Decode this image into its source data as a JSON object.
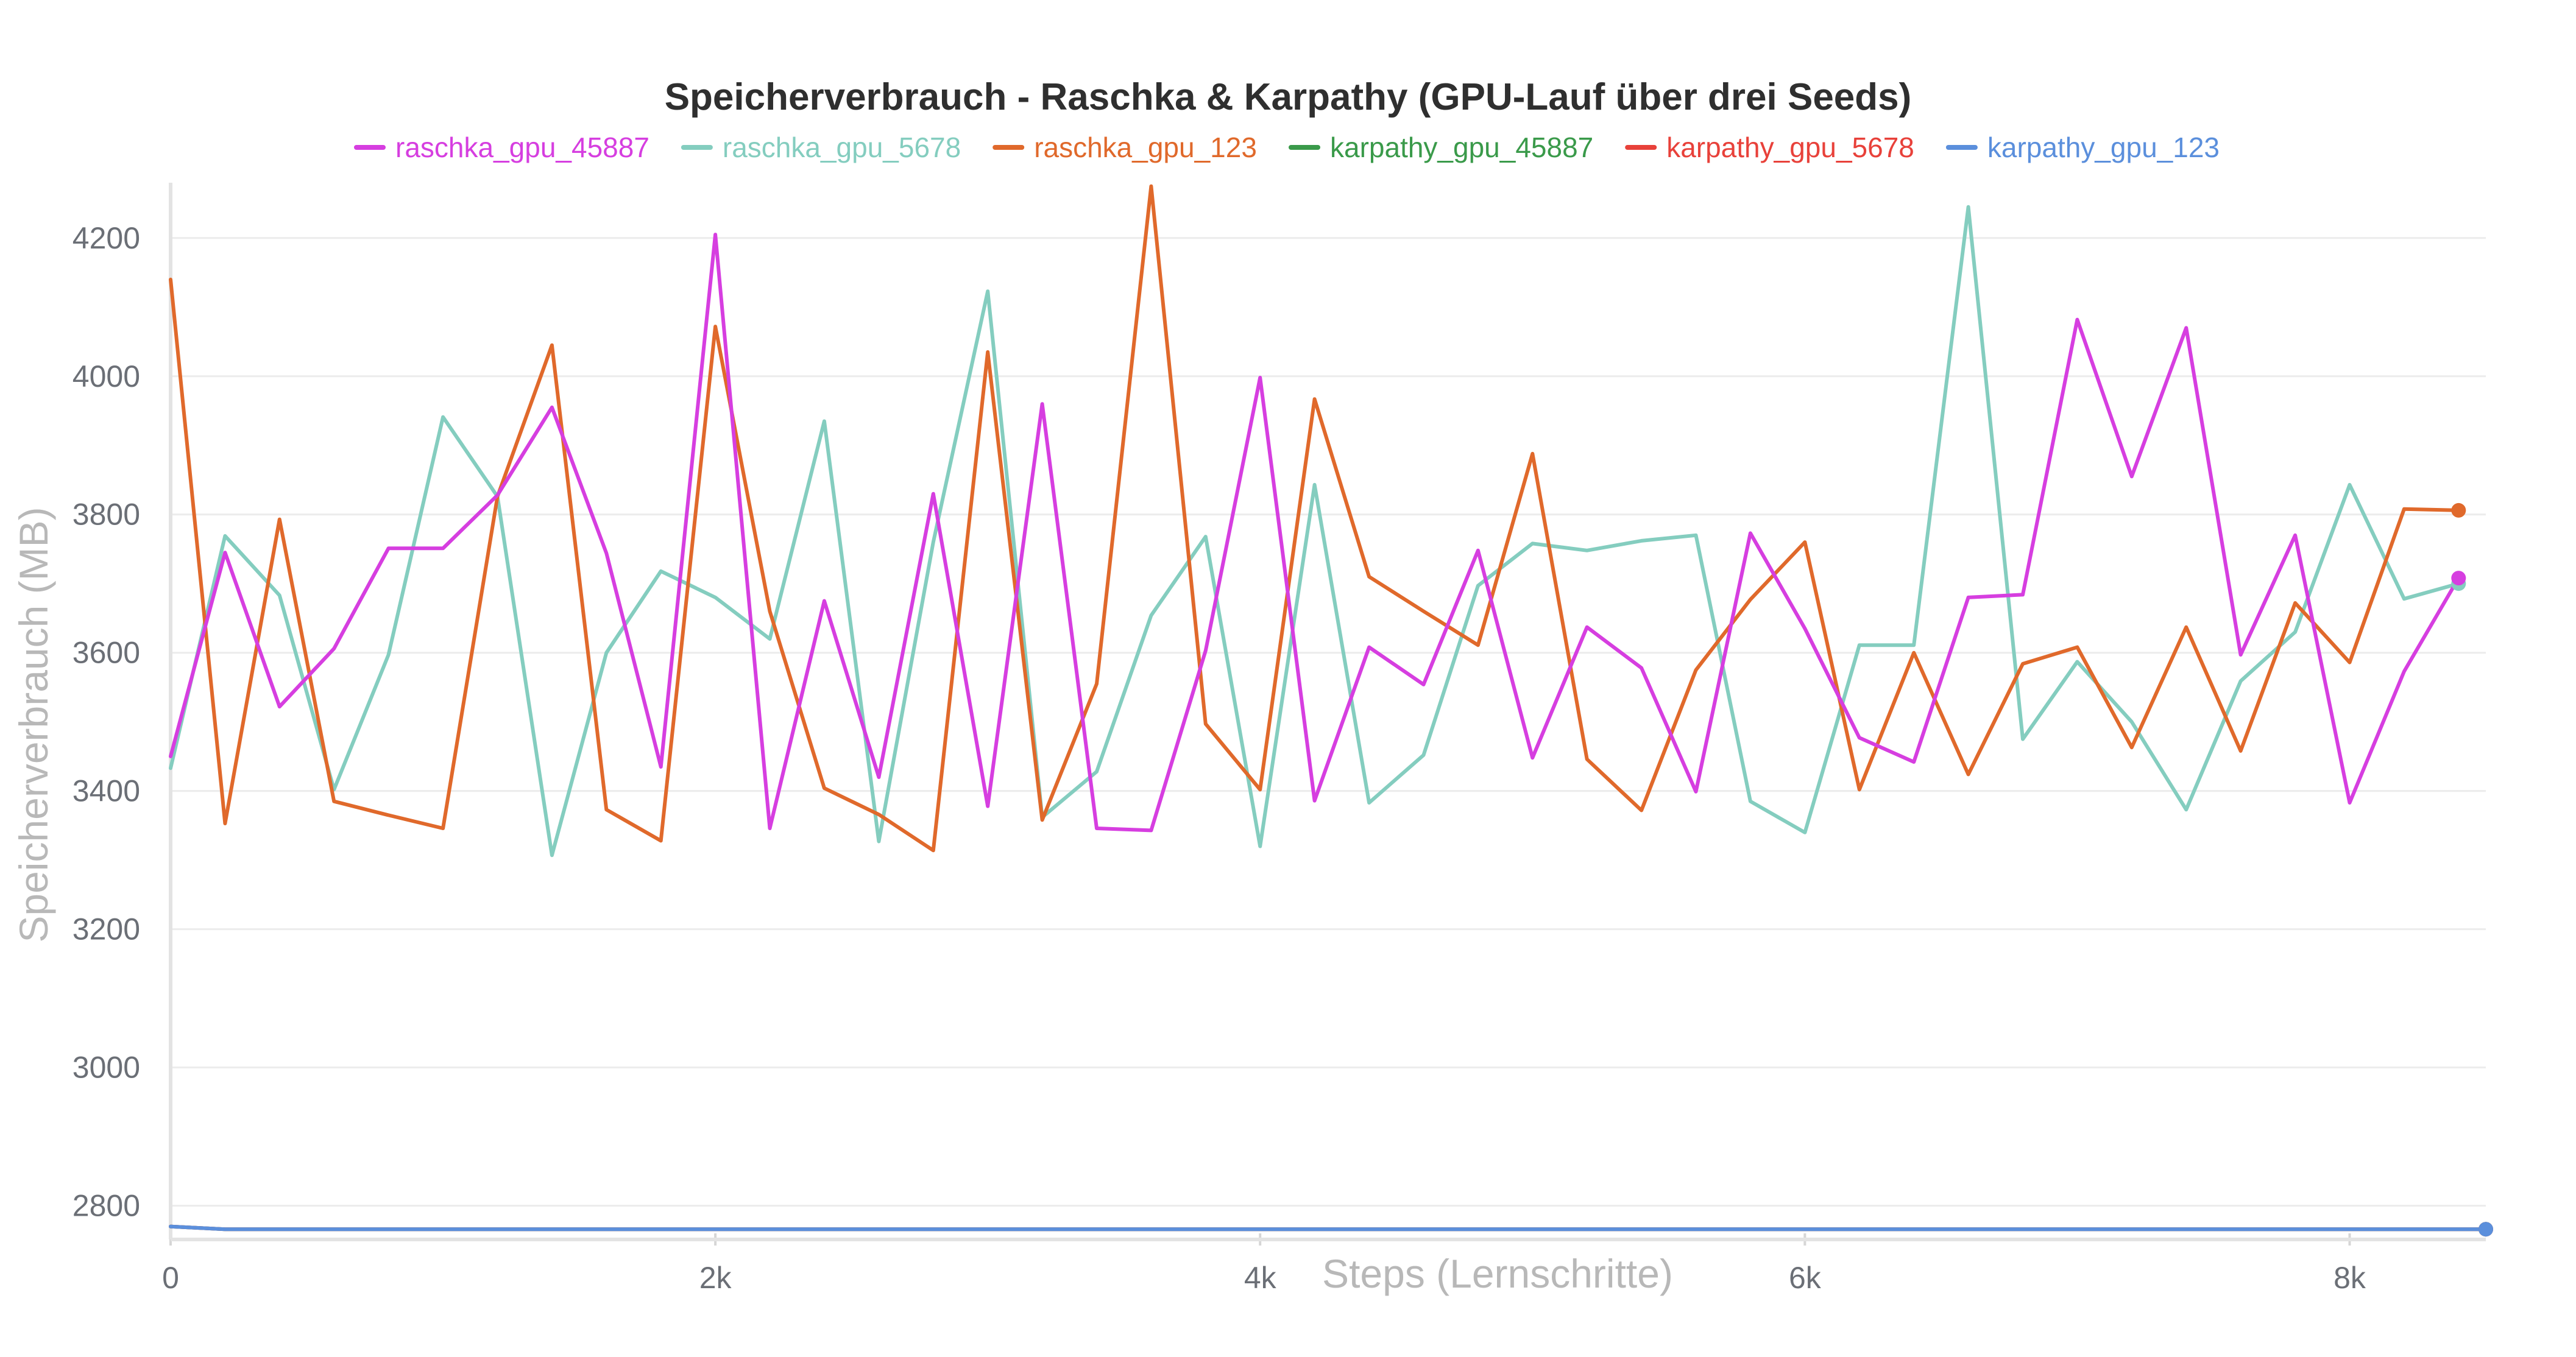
{
  "chart_data": {
    "type": "line",
    "title": "Speicherverbrauch - Raschka & Karpathy (GPU-Lauf über drei Seeds)",
    "xlabel": "Steps (Lernschritte)",
    "ylabel": "Speicherverbrauch (MB)",
    "xlim": [
      0,
      8500
    ],
    "ylim": [
      2760,
      4280
    ],
    "x_ticks": [
      0,
      2000,
      4000,
      6000,
      8000
    ],
    "x_tick_labels": [
      "0",
      "2k",
      "4k",
      "6k",
      "8k"
    ],
    "y_ticks": [
      2800,
      3000,
      3200,
      3400,
      3600,
      3800,
      4000,
      4200
    ],
    "y_tick_labels": [
      "2800",
      "3000",
      "3200",
      "3400",
      "3600",
      "3800",
      "4000",
      "4200"
    ],
    "grid": true,
    "legend_position": "top",
    "series": [
      {
        "name": "raschka_gpu_45887",
        "color": "#d63ee0",
        "x": [
          0,
          200,
          400,
          600,
          800,
          1000,
          1200,
          1400,
          1600,
          1800,
          2000,
          2200,
          2400,
          2600,
          2800,
          3000,
          3200,
          3400,
          3600,
          3800,
          4000,
          4200,
          4400,
          4600,
          4800,
          5000,
          5200,
          5400,
          5600,
          5800,
          6000,
          6200,
          6400,
          6600,
          6800,
          7000,
          7200,
          7400,
          7600,
          7800,
          8000,
          8200,
          8400
        ],
        "values": [
          3450,
          3745,
          3522,
          3606,
          3751,
          3751,
          3828,
          3955,
          3744,
          3435,
          4205,
          3346,
          3675,
          3420,
          3830,
          3378,
          3960,
          3346,
          3343,
          3603,
          3998,
          3386,
          3608,
          3554,
          3748,
          3448,
          3637,
          3578,
          3399,
          3773,
          3635,
          3477,
          3442,
          3680,
          3684,
          4082,
          3855,
          4070,
          3597,
          3770,
          3383,
          3573,
          3708
        ]
      },
      {
        "name": "raschka_gpu_5678",
        "color": "#84cdbf",
        "x": [
          0,
          200,
          400,
          600,
          800,
          1000,
          1200,
          1400,
          1600,
          1800,
          2000,
          2200,
          2400,
          2600,
          2800,
          3000,
          3200,
          3400,
          3600,
          3800,
          4000,
          4200,
          4400,
          4600,
          4800,
          5000,
          5200,
          5400,
          5600,
          5800,
          6000,
          6200,
          6400,
          6600,
          6800,
          7000,
          7200,
          7400,
          7600,
          7800,
          8000,
          8200,
          8400
        ],
        "values": [
          3433,
          3769,
          3683,
          3402,
          3597,
          3941,
          3826,
          3307,
          3600,
          3718,
          3680,
          3620,
          3935,
          3327,
          3760,
          4123,
          3362,
          3428,
          3654,
          3768,
          3320,
          3843,
          3383,
          3452,
          3697,
          3758,
          3748,
          3762,
          3770,
          3385,
          3340,
          3611,
          3611,
          4245,
          3475,
          3587,
          3500,
          3373,
          3559,
          3630,
          3843,
          3678,
          3700
        ]
      },
      {
        "name": "raschka_gpu_123",
        "color": "#e0692b",
        "x": [
          0,
          200,
          400,
          600,
          800,
          1000,
          1200,
          1400,
          1600,
          1800,
          2000,
          2200,
          2400,
          2600,
          2800,
          3000,
          3200,
          3400,
          3600,
          3800,
          4000,
          4200,
          4400,
          4600,
          4800,
          5000,
          5200,
          5400,
          5600,
          5800,
          6000,
          6200,
          6400,
          6600,
          6800,
          7000,
          7200,
          7400,
          7600,
          7800,
          8000,
          8200,
          8400
        ],
        "values": [
          4140,
          3353,
          3793,
          3385,
          3365,
          3346,
          3826,
          4045,
          3373,
          3328,
          4072,
          3660,
          3404,
          3366,
          3314,
          4035,
          3358,
          3555,
          4275,
          3497,
          3402,
          3967,
          3710,
          3660,
          3611,
          3888,
          3446,
          3372,
          3575,
          3677,
          3760,
          3402,
          3600,
          3424,
          3584,
          3608,
          3463,
          3637,
          3458,
          3672,
          3586,
          3808,
          3806
        ]
      },
      {
        "name": "karpathy_gpu_45887",
        "color": "#3a9a4a",
        "x": [
          0,
          200,
          1000,
          2000,
          3000,
          4000,
          5000,
          6000,
          7000,
          8000,
          8500
        ],
        "values": [
          2770,
          2766,
          2766,
          2766,
          2766,
          2766,
          2766,
          2766,
          2766,
          2766,
          2766
        ]
      },
      {
        "name": "karpathy_gpu_5678",
        "color": "#e8413a",
        "x": [
          0,
          200,
          1000,
          2000,
          3000,
          4000,
          5000,
          6000,
          7000,
          8000,
          8500
        ],
        "values": [
          2770,
          2766,
          2766,
          2766,
          2766,
          2766,
          2766,
          2766,
          2766,
          2766,
          2766
        ]
      },
      {
        "name": "karpathy_gpu_123",
        "color": "#5b8fdc",
        "x": [
          0,
          200,
          1000,
          2000,
          3000,
          4000,
          5000,
          6000,
          7000,
          8000,
          8500
        ],
        "values": [
          2770,
          2766,
          2766,
          2766,
          2766,
          2766,
          2766,
          2766,
          2766,
          2766,
          2766
        ]
      }
    ]
  }
}
